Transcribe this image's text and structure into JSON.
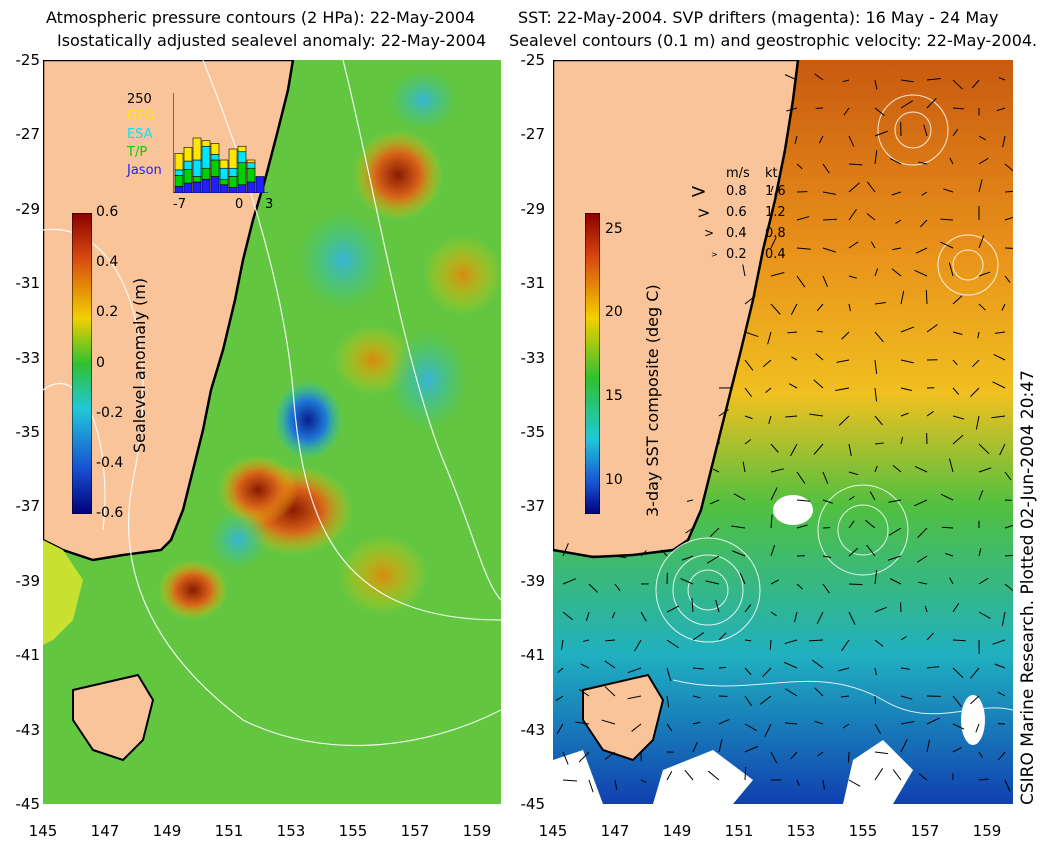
{
  "left_panel": {
    "title_line1": "Atmospheric pressure contours (2 HPa): 22-May-2004",
    "title_line2": "Isostatically adjusted sealevel anomaly: 22-May-2004",
    "colorbar_label": "Sealevel anomaly (m)",
    "colorbar_ticks": [
      "0.6",
      "0.4",
      "0.2",
      "0",
      "-0.2",
      "-0.4",
      "-0.6"
    ],
    "inset": {
      "count_label": "250",
      "legend": [
        {
          "name": "GFO",
          "color": "#ffe600"
        },
        {
          "name": "ESA",
          "color": "#00e5ff"
        },
        {
          "name": "T/P",
          "color": "#00d000"
        },
        {
          "name": "Jason",
          "color": "#2020ff"
        }
      ],
      "xticks": [
        "-7",
        "0",
        "3"
      ]
    }
  },
  "right_panel": {
    "title_line1": "SST: 22-May-2004. SVP drifters (magenta): 16 May - 24 May",
    "title_line2": "Sealevel contours (0.1 m) and geostrophic velocity: 22-May-2004.",
    "colorbar_label": "3-day SST composite (deg C)",
    "colorbar_ticks": [
      "25",
      "20",
      "15",
      "10"
    ],
    "speed_legend": {
      "header_ms": "m/s",
      "header_kt": "kt",
      "rows": [
        {
          "ms": "0.8",
          "kt": "1.6"
        },
        {
          "ms": "0.6",
          "kt": "1.2"
        },
        {
          "ms": "0.4",
          "kt": "0.8"
        },
        {
          "ms": "0.2",
          "kt": "0.4"
        }
      ]
    },
    "credit": "CSIRO Marine Research. Plotted 02-Jun-2004 20:47"
  },
  "y_ticks": [
    "-25",
    "-27",
    "-29",
    "-31",
    "-33",
    "-35",
    "-37",
    "-39",
    "-41",
    "-43",
    "-45"
  ],
  "x_ticks": [
    "145",
    "147",
    "149",
    "151",
    "153",
    "155",
    "157",
    "159"
  ],
  "colors": {
    "land": "#f9c499",
    "coast": "#000000",
    "contour": "#ffffff"
  }
}
